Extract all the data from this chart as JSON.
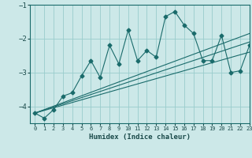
{
  "xlabel": "Humidex (Indice chaleur)",
  "bg_color": "#cce8e8",
  "grid_color": "#99cccc",
  "line_color": "#1a6b6b",
  "x_data": [
    0,
    1,
    2,
    3,
    4,
    5,
    6,
    7,
    8,
    9,
    10,
    11,
    12,
    13,
    14,
    15,
    16,
    17,
    18,
    19,
    20,
    21,
    22,
    23
  ],
  "y_main": [
    -4.2,
    -4.35,
    -4.1,
    -3.7,
    -3.6,
    -3.1,
    -2.65,
    -3.15,
    -2.2,
    -2.75,
    -1.75,
    -2.65,
    -2.35,
    -2.55,
    -1.35,
    -1.2,
    -1.6,
    -1.85,
    -2.65,
    -2.65,
    -1.9,
    -3.0,
    -2.95,
    -2.2
  ],
  "reg_start_x": 0,
  "reg_end_x": 23,
  "reg_lines": [
    [
      -4.2,
      -1.85
    ],
    [
      -4.2,
      -2.1
    ],
    [
      -4.2,
      -2.4
    ]
  ],
  "ylim": [
    -4.5,
    -1.0
  ],
  "xlim": [
    -0.5,
    23
  ],
  "yticks": [
    -4,
    -3,
    -2,
    -1
  ],
  "xticks": [
    0,
    1,
    2,
    3,
    4,
    5,
    6,
    7,
    8,
    9,
    10,
    11,
    12,
    13,
    14,
    15,
    16,
    17,
    18,
    19,
    20,
    21,
    22,
    23
  ],
  "marker": "D",
  "marker_size": 2.5,
  "line_width": 0.8
}
